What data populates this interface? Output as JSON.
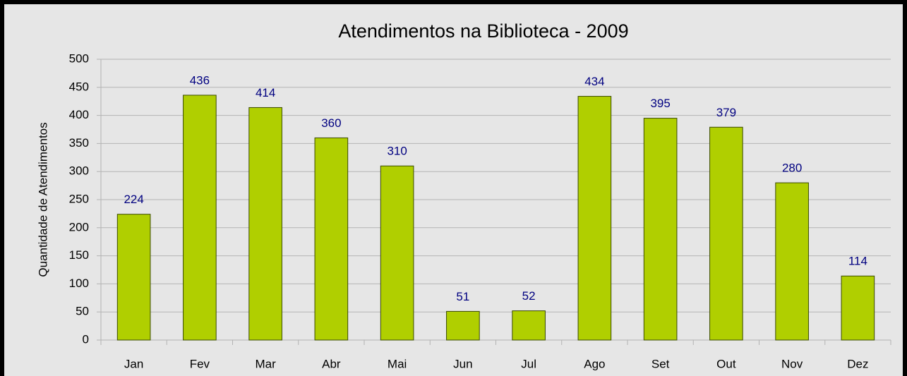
{
  "chart_data": {
    "type": "bar",
    "title": "Atendimentos na Biblioteca - 2009",
    "y_label": "Quantidade de Atendimentos",
    "categories": [
      "Jan",
      "Fev",
      "Mar",
      "Abr",
      "Mai",
      "Jun",
      "Jul",
      "Ago",
      "Set",
      "Out",
      "Nov",
      "Dez"
    ],
    "values": [
      224,
      436,
      414,
      360,
      310,
      51,
      52,
      434,
      395,
      379,
      280,
      114
    ],
    "color": "#b0cf00",
    "ylim": [
      0,
      500
    ],
    "yticks": [
      0,
      50,
      100,
      150,
      200,
      250,
      300,
      350,
      400,
      450,
      500
    ],
    "grid": true
  }
}
